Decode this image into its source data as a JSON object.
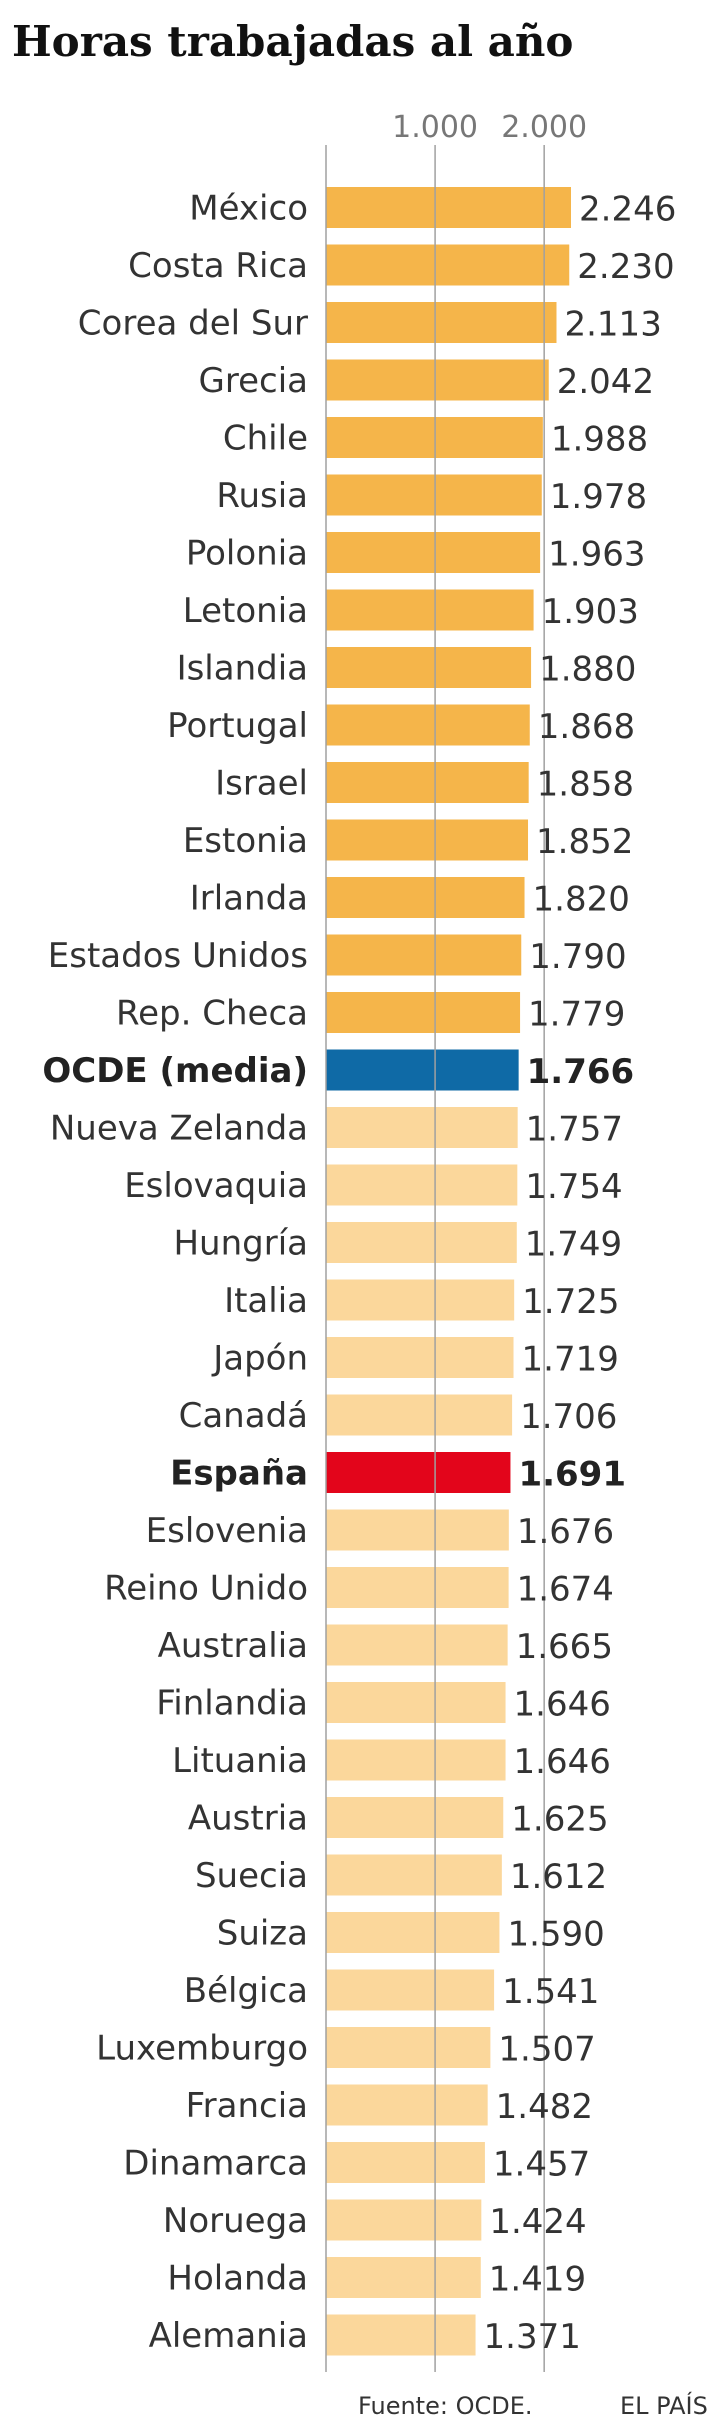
{
  "chart_data": {
    "type": "bar",
    "orientation": "horizontal",
    "title": "Horas trabajadas al año",
    "xticks": [
      1000,
      2000
    ],
    "xtick_labels": [
      "1.000",
      "2.000"
    ],
    "xlim": [
      0,
      2246
    ],
    "grid": true,
    "categories": [
      "México",
      "Costa Rica",
      "Corea del Sur",
      "Grecia",
      "Chile",
      "Rusia",
      "Polonia",
      "Letonia",
      "Islandia",
      "Portugal",
      "Israel",
      "Estonia",
      "Irlanda",
      "Estados Unidos",
      "Rep. Checa",
      "OCDE (media)",
      "Nueva Zelanda",
      "Eslovaquia",
      "Hungría",
      "Italia",
      "Japón",
      "Canadá",
      "España",
      "Eslovenia",
      "Reino Unido",
      "Australia",
      "Finlandia",
      "Lituania",
      "Austria",
      "Suecia",
      "Suiza",
      "Bélgica",
      "Luxemburgo",
      "Francia",
      "Dinamarca",
      "Noruega",
      "Holanda",
      "Alemania"
    ],
    "values": [
      2246,
      2230,
      2113,
      2042,
      1988,
      1978,
      1963,
      1903,
      1880,
      1868,
      1858,
      1852,
      1820,
      1790,
      1779,
      1766,
      1757,
      1754,
      1749,
      1725,
      1719,
      1706,
      1691,
      1676,
      1674,
      1665,
      1646,
      1646,
      1625,
      1612,
      1590,
      1541,
      1507,
      1482,
      1457,
      1424,
      1419,
      1371
    ],
    "value_labels": [
      "2.246",
      "2.230",
      "2.113",
      "2.042",
      "1.988",
      "1.978",
      "1.963",
      "1.903",
      "1.880",
      "1.868",
      "1.858",
      "1.852",
      "1.820",
      "1.790",
      "1.779",
      "1.766",
      "1.757",
      "1.754",
      "1.749",
      "1.725",
      "1.719",
      "1.706",
      "1.691",
      "1.676",
      "1.674",
      "1.665",
      "1.646",
      "1.646",
      "1.625",
      "1.612",
      "1.590",
      "1.541",
      "1.507",
      "1.482",
      "1.457",
      "1.424",
      "1.419",
      "1.371"
    ],
    "highlighted": [
      "OCDE (media)",
      "España"
    ],
    "colors": {
      "above_average": "#f5b54a",
      "below_average": "#fbd79b",
      "average": "#0f6aa6",
      "spain": "#e3051b",
      "gridline": "#a0a0a0"
    }
  },
  "footer": {
    "source": "Fuente: OCDE.",
    "publisher": "EL PAÍS"
  }
}
